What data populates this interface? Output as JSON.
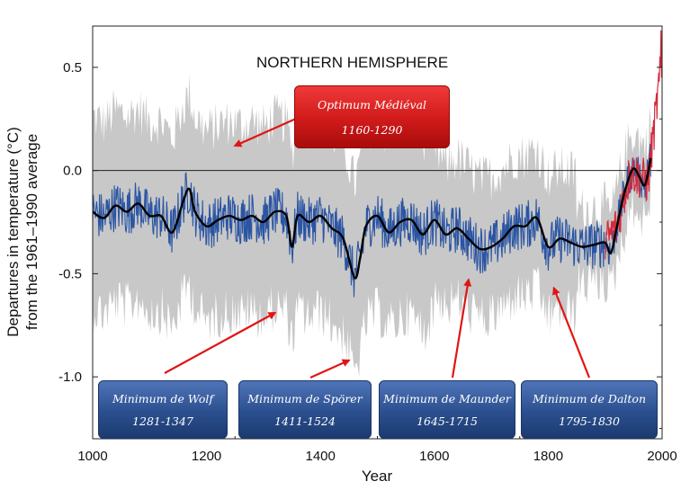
{
  "chart_data": {
    "type": "line",
    "title": "NORTHERN HEMISPHERE",
    "xlabel": "Year",
    "ylabel": [
      "Departures in temperature (°C)",
      "from the 1961–1990 average"
    ],
    "xlim": [
      1000,
      2000
    ],
    "ylim": [
      -1.3,
      0.7
    ],
    "x_ticks": [
      1000,
      1200,
      1400,
      1600,
      1800,
      2000
    ],
    "x_tick_labels": [
      "1000",
      "1200",
      "1400",
      "1600",
      "1800",
      "2000"
    ],
    "y_ticks": [
      0.5,
      0.0,
      -0.5,
      -1.0
    ],
    "y_tick_labels": [
      "0.5",
      "0.0",
      "-0.5",
      "-1.0"
    ],
    "series": [
      {
        "role": "smoothed-reconstruction",
        "color": "#000000",
        "x": [
          1000,
          1020,
          1040,
          1060,
          1080,
          1100,
          1120,
          1140,
          1160,
          1170,
          1180,
          1200,
          1220,
          1240,
          1260,
          1280,
          1300,
          1320,
          1340,
          1350,
          1360,
          1380,
          1400,
          1420,
          1440,
          1460,
          1470,
          1480,
          1500,
          1520,
          1540,
          1560,
          1580,
          1600,
          1620,
          1640,
          1660,
          1680,
          1700,
          1720,
          1740,
          1760,
          1780,
          1800,
          1820,
          1840,
          1860,
          1880,
          1900,
          1910,
          1920,
          1930,
          1940,
          1950,
          1960,
          1970,
          1980
        ],
        "y": [
          -0.2,
          -0.23,
          -0.17,
          -0.2,
          -0.16,
          -0.22,
          -0.22,
          -0.3,
          -0.14,
          -0.09,
          -0.2,
          -0.27,
          -0.24,
          -0.22,
          -0.24,
          -0.22,
          -0.25,
          -0.2,
          -0.22,
          -0.37,
          -0.22,
          -0.25,
          -0.22,
          -0.28,
          -0.33,
          -0.52,
          -0.42,
          -0.27,
          -0.22,
          -0.3,
          -0.25,
          -0.24,
          -0.31,
          -0.24,
          -0.31,
          -0.28,
          -0.33,
          -0.38,
          -0.37,
          -0.33,
          -0.27,
          -0.27,
          -0.23,
          -0.37,
          -0.33,
          -0.35,
          -0.37,
          -0.36,
          -0.35,
          -0.4,
          -0.28,
          -0.15,
          -0.05,
          0.01,
          -0.03,
          -0.07,
          0.06
        ]
      },
      {
        "role": "annual-reconstruction",
        "color": "#2b55a3",
        "x_range": [
          1000,
          1980
        ]
      },
      {
        "role": "uncertainty-range",
        "color": "#c8c8c8",
        "x_range": [
          1000,
          1980
        ]
      },
      {
        "role": "instrumental-record",
        "color": "#d42a3c",
        "x_range": [
          1900,
          2000
        ]
      }
    ],
    "zero_line": true
  },
  "annotations": {
    "optimum": {
      "name": "Optimum Médiéval",
      "years": "1160-1290",
      "target_year": 1250,
      "target_value": 0.12
    },
    "wolf": {
      "name": "Minimum de Wolf",
      "years": "1281-1347",
      "target_year": 1320,
      "target_value": -0.69
    },
    "sporer": {
      "name": "Minimum de Spörer",
      "years": "1411-1524",
      "target_year": 1450,
      "target_value": -0.92
    },
    "maunder": {
      "name": "Minimum de Maunder",
      "years": "1645-1715",
      "target_year": 1660,
      "target_value": -0.53
    },
    "dalton": {
      "name": "Minimum de Dalton",
      "years": "1795-1830",
      "target_year": 1810,
      "target_value": -0.57
    }
  },
  "colors": {
    "smoothed": "#000000",
    "annual": "#2b55a3",
    "uncertainty": "#c8c8c8",
    "instrumental": "#d42a3c",
    "arrow": "#e01515"
  }
}
